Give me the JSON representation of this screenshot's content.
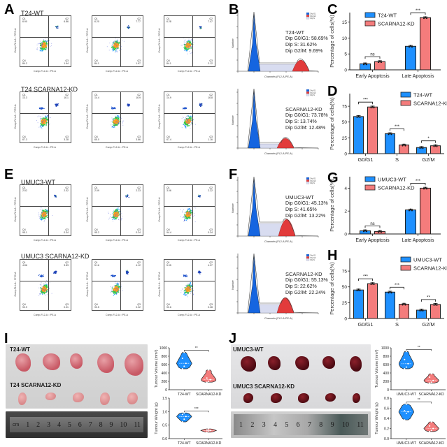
{
  "figure": {
    "panels": {
      "A": {
        "letter": "A",
        "groups": [
          {
            "title": "T24-WT",
            "plots": [
              {
                "Q1": "6.90",
                "Q2": "6.86",
                "Q3": "1.94",
                "Q4": "84.2"
              },
              {
                "Q1": "6.20",
                "Q2": "7.77",
                "Q3": "1.97",
                "Q4": "84.1"
              },
              {
                "Q1": "6.28",
                "Q2": "7.47",
                "Q3": "2.12",
                "Q4": "84.1"
              }
            ]
          },
          {
            "title": "T24 SCARNA12-KD",
            "plots": [
              {
                "Q1": "13.3",
                "Q2": "16.1",
                "Q3": "3.28",
                "Q4": "67.3"
              },
              {
                "Q1": "14.4",
                "Q2": "16.9",
                "Q3": "3.66",
                "Q4": "65.0"
              },
              {
                "Q1": "14.9",
                "Q2": "16.8",
                "Q3": "1.16",
                "Q4": "67.4"
              }
            ]
          }
        ]
      },
      "E": {
        "letter": "E",
        "groups": [
          {
            "title": "UMUC3-WT",
            "plots": [
              {
                "Q1": "2.52",
                "Q2": "2.02",
                "Q3": "0.34",
                "Q4": "95.1"
              },
              {
                "Q1": "2.09",
                "Q2": "2.23",
                "Q3": "0.24",
                "Q4": "95.2"
              },
              {
                "Q1": "3.06",
                "Q2": "2.22",
                "Q3": "0.34",
                "Q4": "94.4"
              }
            ]
          },
          {
            "title": "UMUC3 SCARNA12-KD",
            "plots": [
              {
                "Q1": "4.86",
                "Q2": "3.83",
                "Q3": "0.31",
                "Q4": "90.9"
              },
              {
                "Q1": "5.16",
                "Q2": "4.12",
                "Q3": "0.22",
                "Q4": "90.5"
              },
              {
                "Q1": "5.05",
                "Q2": "4.07",
                "Q3": "0.28",
                "Q4": "90.6"
              }
            ]
          }
        ]
      },
      "B": {
        "letter": "B",
        "hists": [
          {
            "title": "T24-WT",
            "g0g1": "Dip G0/G1: 58.69%",
            "s": "Dip S: 31.62%",
            "g2m": "Dip G2/M: 9.69%"
          },
          {
            "title": "SCARNA12-KD",
            "g0g1": "Dip G0/G1: 73.78%",
            "s": "Dip S: 13.74%",
            "g2m": "Dip G2/M: 12.48%"
          }
        ]
      },
      "F": {
        "letter": "F",
        "hists": [
          {
            "title": "UMUC3-WT",
            "g0g1": "Dip G0/G1: 45.13%",
            "s": "Dip S: 41.65%",
            "g2m": "Dip G2/M: 13.22%"
          },
          {
            "title": "SCARNA12-KD",
            "g0g1": "Dip G0/G1: 55.13%",
            "s": "Dip S: 22.62%",
            "g2m": "Dip G2/M: 22.24%"
          }
        ]
      },
      "C": {
        "letter": "C"
      },
      "D": {
        "letter": "D"
      },
      "G": {
        "letter": "G"
      },
      "H": {
        "letter": "H"
      },
      "I": {
        "letter": "I",
        "row1_label": "T24-WT",
        "row2_label": "T24 SCARNA12-KD",
        "ruler_unit": "cm",
        "ruler_ticks": [
          "1",
          "2",
          "3",
          "4",
          "5",
          "6",
          "7",
          "8",
          "9",
          "10",
          "11"
        ]
      },
      "J": {
        "letter": "J",
        "row1_label": "UMUC3-WT",
        "row2_label": "UMUC3 SCARNA12-KD",
        "ruler_unit": "",
        "ruler_ticks": [
          "1",
          "2",
          "3",
          "4",
          "5",
          "6",
          "7",
          "8",
          "9",
          "10",
          "11"
        ]
      }
    },
    "flow_axis": {
      "x_label": "Comp-FL2-A :: PE-A",
      "y_label": "Comp-FL1-A :: FITC-A"
    },
    "hist_axis": {
      "x_label": "Channels (FL2-A-PE-A)",
      "y_label": "Number",
      "legend": [
        "Dip G1",
        "Dip G2",
        "Dip S"
      ]
    },
    "colors": {
      "wt": "#1e90ff",
      "kd": "#f47c7c",
      "g1": "#1565e0",
      "g2": "#e23b3b",
      "s": "#d8dcf0"
    }
  },
  "chart_data": [
    {
      "id": "C",
      "type": "bar",
      "title": "",
      "categories": [
        "Early Apoptosis",
        "Late Apoptosis"
      ],
      "series": [
        {
          "name": "T24-WT",
          "values": [
            1.9,
            7.4
          ]
        },
        {
          "name": "SCARNA12-KD",
          "values": [
            2.6,
            16.4
          ]
        }
      ],
      "xlabel": "",
      "ylabel": "Percentage of cells(%)",
      "ylim": [
        0,
        18
      ],
      "yticks": [
        "0",
        "5",
        "10",
        "15"
      ],
      "ytick_values": [
        0,
        5,
        10,
        15
      ],
      "significance": [
        "ns",
        "***"
      ],
      "legend": "top-left"
    },
    {
      "id": "D",
      "type": "bar",
      "title": "",
      "categories": [
        "G0/G1",
        "S",
        "G2/M"
      ],
      "series": [
        {
          "name": "T24-WT",
          "values": [
            58.7,
            31.6,
            9.7
          ]
        },
        {
          "name": "SCARNA12-KD",
          "values": [
            73.8,
            13.7,
            12.5
          ]
        }
      ],
      "xlabel": "",
      "ylabel": "Percentage of cells(%)",
      "ylim": [
        0,
        95
      ],
      "yticks": [
        "0",
        "25",
        "50",
        "75"
      ],
      "ytick_values": [
        0,
        25,
        50,
        75
      ],
      "significance": [
        "***",
        "***",
        "*"
      ],
      "legend": "top-right"
    },
    {
      "id": "G",
      "type": "bar",
      "title": "",
      "categories": [
        "Early Apoptosis",
        "Late Apoptosis"
      ],
      "series": [
        {
          "name": "UMUC3-WT",
          "values": [
            0.28,
            2.1
          ]
        },
        {
          "name": "SCARNA12-KD",
          "values": [
            0.22,
            4.0
          ]
        }
      ],
      "xlabel": "",
      "ylabel": "Percentage of cells(%)",
      "ylim": [
        0,
        5
      ],
      "yticks": [
        "0",
        "2",
        "4"
      ],
      "ytick_values": [
        0,
        2,
        4
      ],
      "significance": [
        "ns",
        "***"
      ],
      "legend": "top-left"
    },
    {
      "id": "H",
      "type": "bar",
      "title": "",
      "categories": [
        "G0/G1",
        "S",
        "G2/M"
      ],
      "series": [
        {
          "name": "UMUC3-WT",
          "values": [
            45.1,
            41.7,
            13.2
          ]
        },
        {
          "name": "SCARNA12-KD",
          "values": [
            55.1,
            22.6,
            22.2
          ]
        }
      ],
      "xlabel": "",
      "ylabel": "Percentage of cells(%)",
      "ylim": [
        0,
        95
      ],
      "yticks": [
        "0",
        "25",
        "50",
        "75"
      ],
      "ytick_values": [
        0,
        25,
        50,
        75
      ],
      "significance": [
        "***",
        "***",
        "**"
      ],
      "legend": "top-right"
    },
    {
      "id": "I-vol",
      "type": "violin",
      "categories": [
        "T24-WT",
        "SCARNA12-KD"
      ],
      "series": [
        {
          "name": "T24-WT",
          "values": [
            500,
            560,
            630,
            750,
            890
          ]
        },
        {
          "name": "SCARNA12-KD",
          "values": [
            180,
            200,
            240,
            280,
            470
          ]
        }
      ],
      "ylabel": "Tumour Volume (mm³)",
      "ylim": [
        0,
        1000
      ],
      "yticks": [
        "0",
        "200",
        "400",
        "600",
        "800",
        "1000"
      ],
      "ytick_values": [
        0,
        200,
        400,
        600,
        800,
        1000
      ],
      "significance": "**"
    },
    {
      "id": "I-wt",
      "type": "violin",
      "categories": [
        "T24-WT",
        "SCARNA12-KD"
      ],
      "series": [
        {
          "name": "T24-WT",
          "values": [
            0.62,
            0.72,
            0.82,
            0.9,
            0.95
          ]
        },
        {
          "name": "SCARNA12-KD",
          "values": [
            0.24,
            0.28,
            0.3,
            0.32,
            0.36
          ]
        }
      ],
      "ylabel": "Tumour Weight (g)",
      "ylim": [
        0,
        1.5
      ],
      "yticks": [
        "0.0",
        "0.5",
        "1.0",
        "1.5"
      ],
      "ytick_values": [
        0,
        0.5,
        1.0,
        1.5
      ],
      "significance": "***"
    },
    {
      "id": "J-vol",
      "type": "violin",
      "categories": [
        "UMUC3-WT",
        "SCARNA12-KD"
      ],
      "series": [
        {
          "name": "UMUC3-WT",
          "values": [
            500,
            540,
            620,
            720,
            910
          ]
        },
        {
          "name": "SCARNA12-KD",
          "values": [
            160,
            180,
            220,
            300,
            380
          ]
        }
      ],
      "ylabel": "Tumour Volume (mm³)",
      "ylim": [
        0,
        1000
      ],
      "yticks": [
        "0",
        "200",
        "400",
        "600",
        "800",
        "1000"
      ],
      "ytick_values": [
        0,
        200,
        400,
        600,
        800,
        1000
      ],
      "significance": "**"
    },
    {
      "id": "J-wt",
      "type": "violin",
      "categories": [
        "UMUC3-WT",
        "SCARNA12-KD"
      ],
      "series": [
        {
          "name": "UMUC3-WT",
          "values": [
            0.37,
            0.5,
            0.53,
            0.55,
            0.68
          ]
        },
        {
          "name": "SCARNA12-KD",
          "values": [
            0.14,
            0.16,
            0.2,
            0.25,
            0.33
          ]
        }
      ],
      "ylabel": "Tumour Weight (g)",
      "ylim": [
        0,
        0.8
      ],
      "yticks": [
        "0.0",
        "0.2",
        "0.4",
        "0.6",
        "0.8"
      ],
      "ytick_values": [
        0,
        0.2,
        0.4,
        0.6,
        0.8
      ],
      "significance": "**"
    }
  ]
}
